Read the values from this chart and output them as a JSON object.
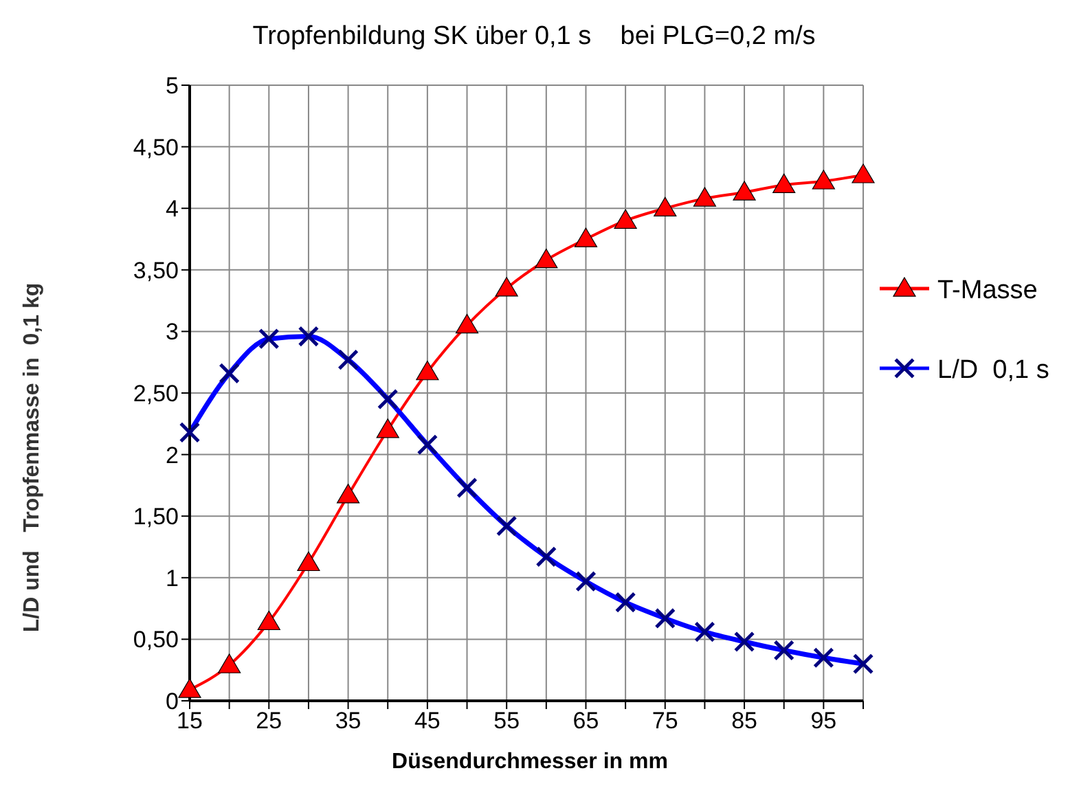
{
  "chart_data": {
    "type": "line",
    "title": "Tropfenbildung SK über 0,1 s    bei PLG=0,2 m/s",
    "xlabel": "Düsendurchmesser in mm",
    "ylabel": "L/D und   Tropfenmasse in  0,1 kg",
    "categories": [
      "15",
      null,
      "25",
      null,
      "35",
      null,
      "45",
      null,
      "55",
      null,
      "65",
      null,
      "75",
      null,
      "85",
      null,
      "95",
      null
    ],
    "series": [
      {
        "name": "T-Masse",
        "color": "#ff0000",
        "marker": "triangle",
        "values": [
          0.09,
          0.29,
          0.64,
          1.12,
          1.67,
          2.2,
          2.67,
          3.05,
          3.35,
          3.58,
          3.75,
          3.9,
          4.0,
          4.08,
          4.13,
          4.19,
          4.22,
          4.27
        ]
      },
      {
        "name": "L/D  0,1 s",
        "color": "#0000ff",
        "marker": "cross",
        "values": [
          2.18,
          2.66,
          2.94,
          2.96,
          2.77,
          2.45,
          2.08,
          1.73,
          1.42,
          1.17,
          0.97,
          0.8,
          0.67,
          0.56,
          0.48,
          0.41,
          0.35,
          0.3
        ]
      }
    ],
    "ylim": [
      0,
      5
    ],
    "yticks": [
      0,
      {
        "value": 0.5,
        "label": "0,50"
      },
      1,
      {
        "value": 1.5,
        "label": "1,50"
      },
      2,
      {
        "value": 2.5,
        "label": "2,50"
      },
      3,
      {
        "value": 3.5,
        "label": "3,50"
      },
      4,
      {
        "value": 4.5,
        "label": "4,50"
      },
      5
    ],
    "grid": true,
    "legend": "right"
  }
}
